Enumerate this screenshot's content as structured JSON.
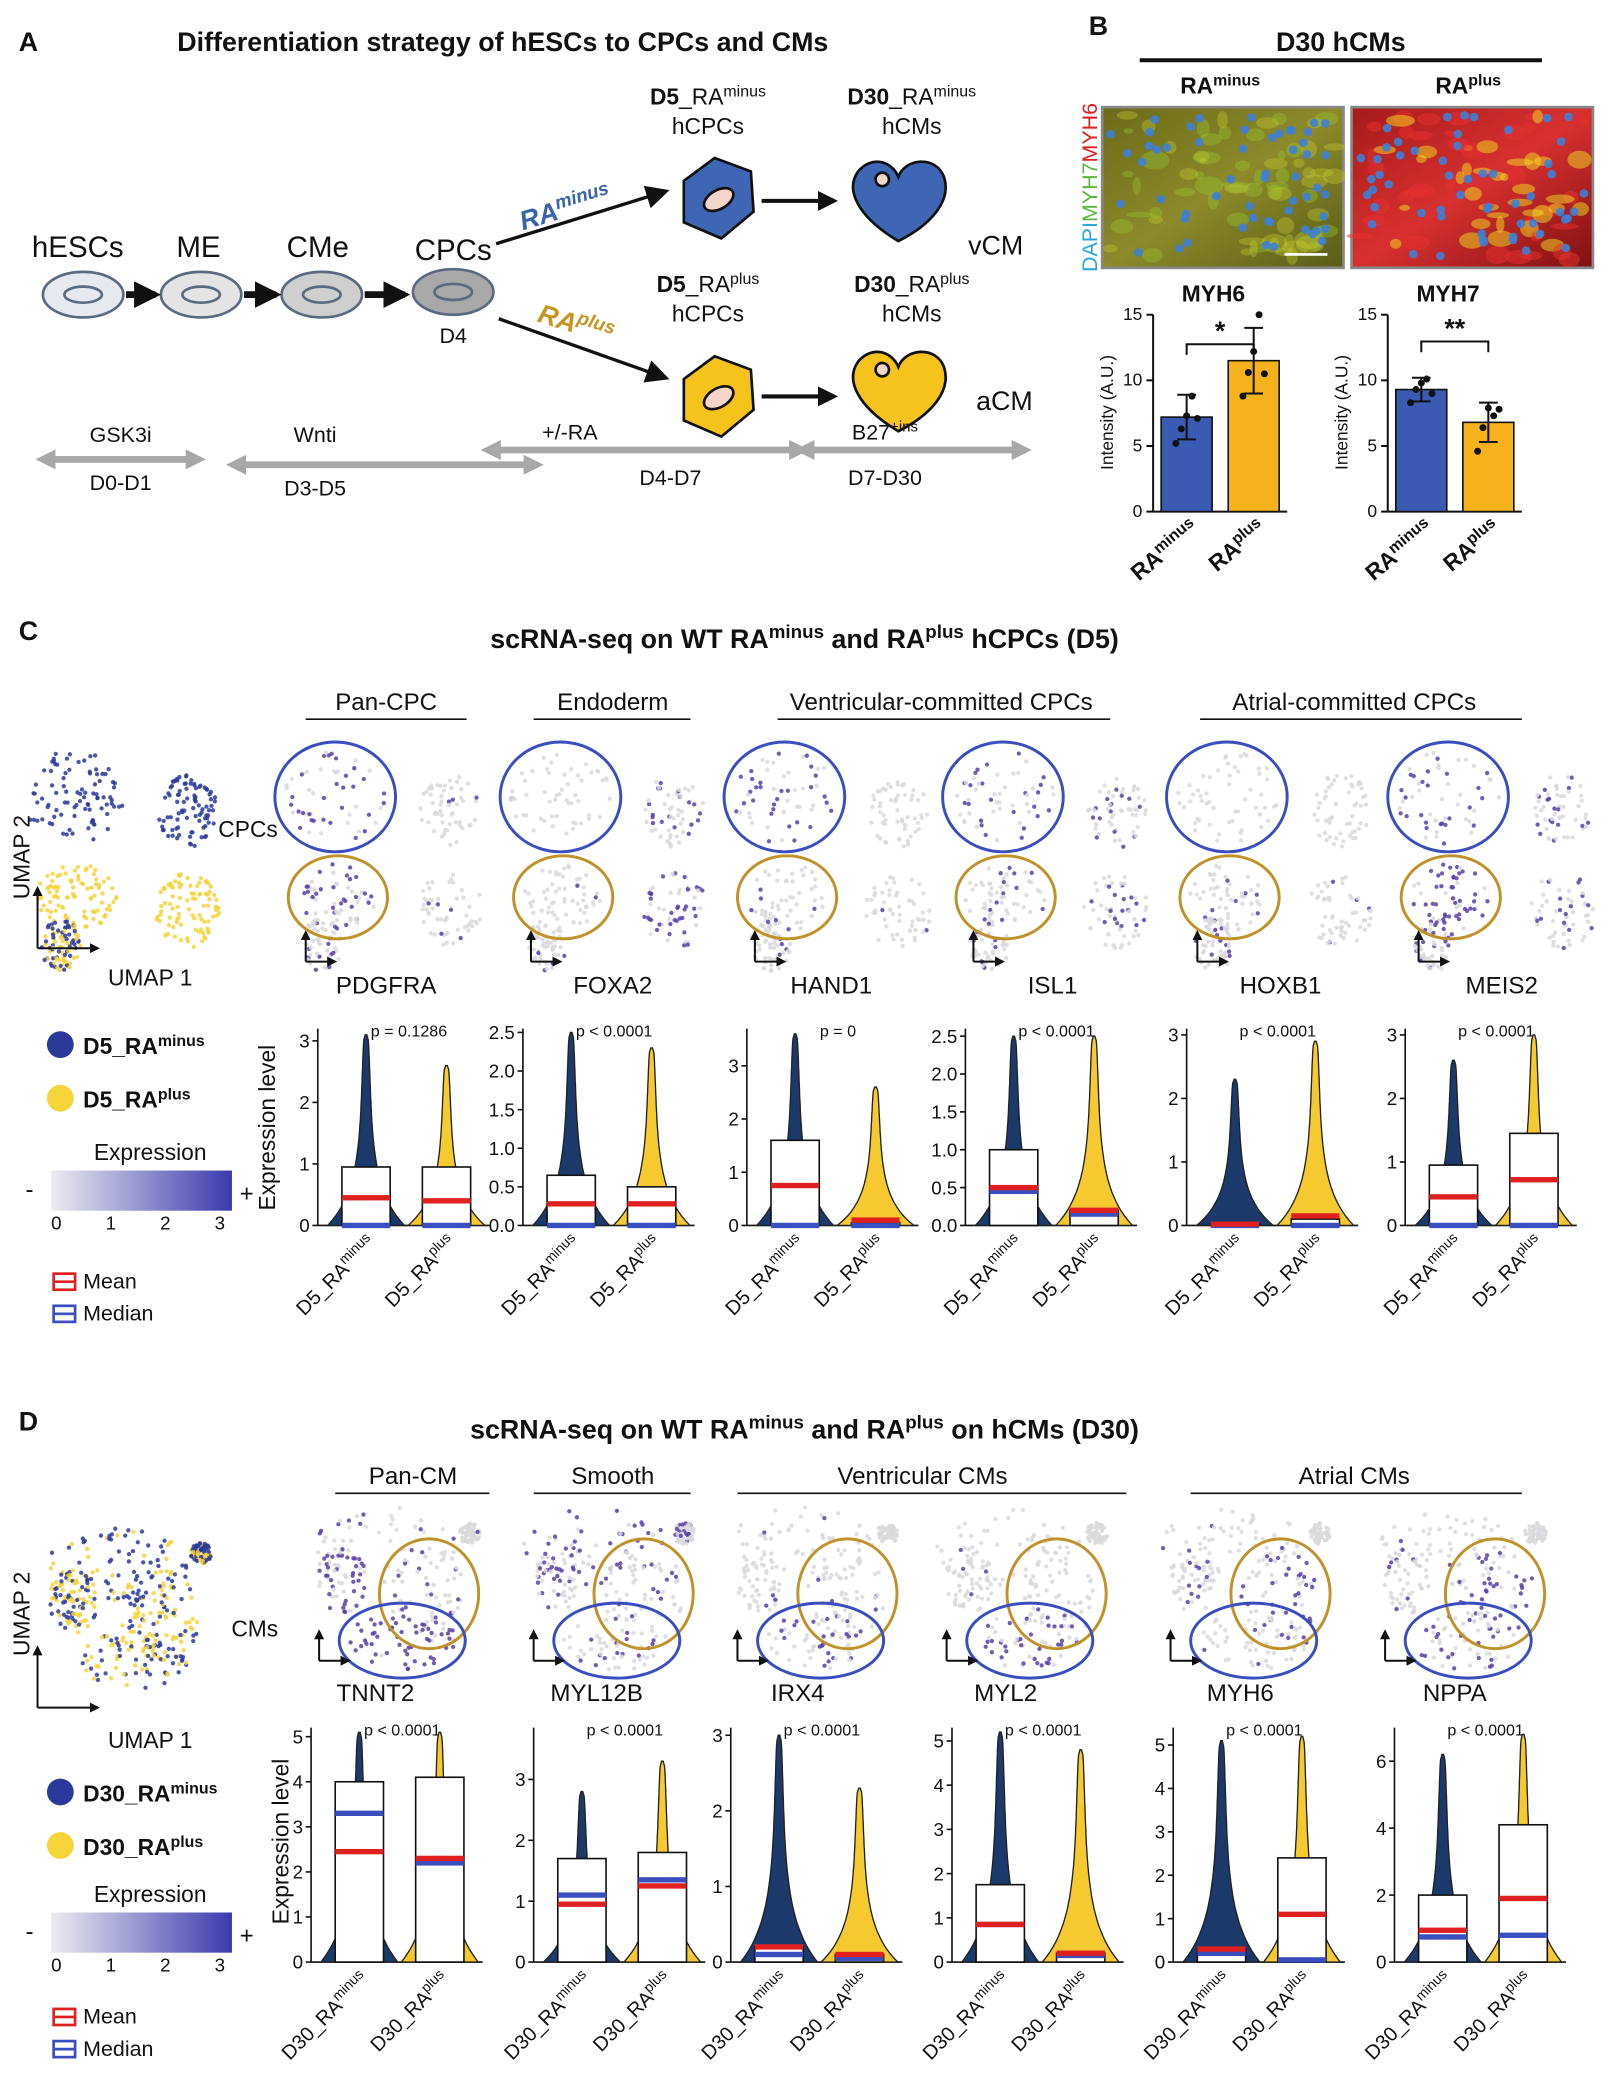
{
  "panel_a": {
    "letter": "A",
    "title": "Differentiation strategy of hESCs to CPCs and CMs",
    "stages": [
      "hESCs",
      "ME",
      "CMe",
      "CPCs"
    ],
    "cpc_day": "D4",
    "branches": [
      {
        "arrow": {
          "text": "RA",
          "sup": "minus"
        },
        "cpc": {
          "bold": "D5",
          "text": "_RA",
          "sup": "minus"
        },
        "cpc_type": "hCPCs",
        "cm": {
          "bold": "D30",
          "text": "_RA",
          "sup": "minus"
        },
        "cm_type": "hCMs",
        "fate": "vCM"
      },
      {
        "arrow": {
          "text": "RA",
          "sup": "plus"
        },
        "cpc": {
          "bold": "D5",
          "text": "_RA",
          "sup": "plus"
        },
        "cpc_type": "hCPCs",
        "cm": {
          "bold": "D30",
          "text": "_RA",
          "sup": "plus"
        },
        "cm_type": "hCMs",
        "fate": "aCM"
      }
    ],
    "timeline": [
      {
        "treatment": {
          "text": "GSK3i"
        },
        "days": "D0-D1"
      },
      {
        "treatment": {
          "text": "Wnti"
        },
        "days": "D3-D5"
      },
      {
        "treatment": {
          "text": "+/-RA"
        },
        "days": "D4-D7"
      },
      {
        "treatment": {
          "text": "B27",
          "sup": "+ins"
        },
        "days": "D7-D30"
      }
    ]
  },
  "panel_b": {
    "letter": "B",
    "title": "D30 hCMs",
    "conditions": [
      {
        "text": "RA",
        "sup": "minus"
      },
      {
        "text": "RA",
        "sup": "plus"
      }
    ],
    "stain": [
      "DAPI",
      "MYH7",
      "MYH6"
    ],
    "charts": [
      {
        "type": "bar",
        "title": "MYH6",
        "y_label": "Intensity (A.U.)",
        "ylim": [
          0,
          15
        ],
        "yticks": [
          0,
          5,
          10,
          15
        ],
        "categories": [
          {
            "text": "RA",
            "sup": "minus"
          },
          {
            "text": "RA",
            "sup": "plus"
          }
        ],
        "values": [
          7.2,
          11.5
        ],
        "errors": [
          1.7,
          2.5
        ],
        "colors": [
          "#3a5ab4",
          "#f5b21c"
        ],
        "points": [
          [
            5.2,
            6.3,
            7.3,
            8.8,
            7.1
          ],
          [
            8.8,
            10.6,
            12.2,
            15,
            10.5
          ]
        ],
        "significance": "*"
      },
      {
        "type": "bar",
        "title": "MYH7",
        "y_label": "Intensity (A.U.)",
        "ylim": [
          0,
          15
        ],
        "yticks": [
          0,
          5,
          10,
          15
        ],
        "categories": [
          {
            "text": "RA",
            "sup": "minus"
          },
          {
            "text": "RA",
            "sup": "plus"
          }
        ],
        "values": [
          9.3,
          6.8
        ],
        "errors": [
          0.9,
          1.5
        ],
        "colors": [
          "#3a5ab4",
          "#f5b21c"
        ],
        "points": [
          [
            8.3,
            9.3,
            9.8,
            10.1,
            9.0
          ],
          [
            4.6,
            6.4,
            7.9,
            7.3,
            7.8
          ]
        ],
        "significance": "**"
      }
    ]
  },
  "panel_c": {
    "letter": "C",
    "title": [
      {
        "text": "scRNA-seq on WT RA",
        "sup": "minus"
      },
      {
        "text": " and RA",
        "sup": "plus"
      },
      {
        "text": " hCPCs (D5)"
      }
    ],
    "groups": [
      "Pan-CPC",
      "Endoderm",
      "Ventricular-committed CPCs",
      "Atrial-committed CPCs"
    ],
    "cluster_label": "CPCs",
    "umap_axes": [
      "UMAP 1",
      "UMAP 2"
    ],
    "legend": [
      {
        "text": "D5_RA",
        "sup": "minus",
        "color": "#2b3a9a"
      },
      {
        "text": "D5_RA",
        "sup": "plus",
        "color": "#f6d43a"
      }
    ],
    "expression": {
      "title": "Expression",
      "low": "-",
      "high": "+",
      "ticks": [
        0,
        1,
        2,
        3
      ]
    },
    "summary_legend": [
      {
        "label": "Mean",
        "color": "#e02020"
      },
      {
        "label": "Median",
        "color": "#3a4ec0"
      }
    ],
    "y_label": "Expression level",
    "categories": [
      {
        "text": "D5_RA",
        "sup": "minus"
      },
      {
        "text": "D5_RA",
        "sup": "plus"
      }
    ],
    "genes": [
      {
        "type": "violin",
        "name": "PDGFRA",
        "p": "p = 0.1286",
        "ylim": [
          0,
          3.2
        ],
        "yticks": [
          0,
          1,
          2,
          3
        ],
        "series": [
          {
            "color": "#1b3a6b",
            "mean": 0.45,
            "median": 0,
            "q3": 0.95,
            "max": 3.1
          },
          {
            "color": "#f5c92f",
            "mean": 0.4,
            "median": 0,
            "q3": 0.95,
            "max": 2.6
          }
        ]
      },
      {
        "type": "violin",
        "name": "FOXA2",
        "p": "p < 0.0001",
        "ylim": [
          0,
          2.55
        ],
        "yticks": [
          {
            "value": 0,
            "label": "0.0"
          },
          {
            "value": 0.5,
            "label": "0.5"
          },
          {
            "value": 1,
            "label": "1.0"
          },
          {
            "value": 1.5,
            "label": "1.5"
          },
          {
            "value": 2,
            "label": "2.0"
          },
          {
            "value": 2.5,
            "label": "2.5"
          }
        ],
        "series": [
          {
            "color": "#1b3a6b",
            "mean": 0.28,
            "median": 0,
            "q3": 0.65,
            "max": 2.5
          },
          {
            "color": "#f5c92f",
            "mean": 0.28,
            "median": 0,
            "q3": 0.5,
            "max": 2.3
          }
        ]
      },
      {
        "type": "violin",
        "name": "HAND1",
        "p": "p = 0",
        "ylim": [
          0,
          3.7
        ],
        "yticks": [
          0,
          1,
          2,
          3
        ],
        "series": [
          {
            "color": "#1b3a6b",
            "mean": 0.75,
            "median": 0,
            "q3": 1.6,
            "max": 3.6
          },
          {
            "color": "#f5c92f",
            "mean": 0.1,
            "median": 0,
            "q3": 0.05,
            "max": 2.6
          }
        ]
      },
      {
        "type": "violin",
        "name": "ISL1",
        "p": "p < 0.0001",
        "ylim": [
          0,
          2.6
        ],
        "yticks": [
          {
            "value": 0,
            "label": "0.0"
          },
          {
            "value": 0.5,
            "label": "0.5"
          },
          {
            "value": 1,
            "label": "1.0"
          },
          {
            "value": 1.5,
            "label": "1.5"
          },
          {
            "value": 2,
            "label": "2.0"
          },
          {
            "value": 2.5,
            "label": "2.5"
          }
        ],
        "series": [
          {
            "color": "#1b3a6b",
            "mean": 0.5,
            "median": 0.45,
            "q3": 1.0,
            "max": 2.5
          },
          {
            "color": "#f5c92f",
            "mean": 0.2,
            "median": 0.15,
            "q3": 0.2,
            "max": 2.5
          }
        ]
      },
      {
        "type": "violin",
        "name": "HOXB1",
        "p": "p < 0.0001",
        "ylim": [
          0,
          3.1
        ],
        "yticks": [
          0,
          1,
          2,
          3
        ],
        "series": [
          {
            "color": "#1b3a6b",
            "mean": 0.02,
            "median": 0,
            "q3": 0.02,
            "max": 2.3
          },
          {
            "color": "#f5c92f",
            "mean": 0.15,
            "median": 0,
            "q3": 0.1,
            "max": 2.9
          }
        ]
      },
      {
        "type": "violin",
        "name": "MEIS2",
        "p": "p < 0.0001",
        "ylim": [
          0,
          3.1
        ],
        "yticks": [
          0,
          1,
          2,
          3
        ],
        "series": [
          {
            "color": "#1b3a6b",
            "mean": 0.45,
            "median": 0,
            "q3": 0.95,
            "max": 2.6
          },
          {
            "color": "#f5c92f",
            "mean": 0.72,
            "median": 0,
            "q3": 1.45,
            "max": 3.0
          }
        ]
      }
    ]
  },
  "panel_d": {
    "letter": "D",
    "title": [
      {
        "text": "scRNA-seq on WT RA",
        "sup": "minus"
      },
      {
        "text": " and RA",
        "sup": "plus"
      },
      {
        "text": " on hCMs (D30)"
      }
    ],
    "groups": [
      "Pan-CM",
      "Smooth",
      "Ventricular CMs",
      "Atrial CMs"
    ],
    "cluster_label": "CMs",
    "umap_axes": [
      "UMAP 1",
      "UMAP 2"
    ],
    "legend": [
      {
        "text": "D30_RA",
        "sup": "minus",
        "color": "#2b3a9a"
      },
      {
        "text": "D30_RA",
        "sup": "plus",
        "color": "#f6d43a"
      }
    ],
    "expression": {
      "title": "Expression",
      "low": "-",
      "high": "+",
      "ticks": [
        0,
        1,
        2,
        3
      ]
    },
    "summary_legend": [
      {
        "label": "Mean",
        "color": "#e02020"
      },
      {
        "label": "Median",
        "color": "#3a4ec0"
      }
    ],
    "y_label": "Expression level",
    "categories": [
      {
        "text": "D30_RA",
        "sup": "minus"
      },
      {
        "text": "D30_RA",
        "sup": "plus"
      }
    ],
    "genes": [
      {
        "type": "violin",
        "name": "TNNT2",
        "p": "p < 0.0001",
        "ylim": [
          0,
          5.2
        ],
        "yticks": [
          0,
          1,
          2,
          3,
          4,
          5
        ],
        "series": [
          {
            "color": "#1b3a6b",
            "mean": 2.45,
            "median": 3.3,
            "q3": 4.0,
            "max": 5.1
          },
          {
            "color": "#f5c92f",
            "mean": 2.3,
            "median": 2.2,
            "q3": 4.1,
            "max": 5.1
          }
        ]
      },
      {
        "type": "violin",
        "name": "MYL12B",
        "p": "p < 0.0001",
        "ylim": [
          0,
          3.85
        ],
        "yticks": [
          0,
          1,
          2,
          3
        ],
        "series": [
          {
            "color": "#1b3a6b",
            "mean": 0.95,
            "median": 1.1,
            "q3": 1.7,
            "max": 2.8
          },
          {
            "color": "#f5c92f",
            "mean": 1.25,
            "median": 1.35,
            "q3": 1.8,
            "max": 3.3
          }
        ]
      },
      {
        "type": "violin",
        "name": "IRX4",
        "p": "p < 0.0001",
        "ylim": [
          0,
          3.1
        ],
        "yticks": [
          0,
          1,
          2,
          3
        ],
        "series": [
          {
            "color": "#1b3a6b",
            "mean": 0.2,
            "median": 0.1,
            "q3": 0.2,
            "max": 3.0
          },
          {
            "color": "#f5c92f",
            "mean": 0.1,
            "median": 0.05,
            "q3": 0.1,
            "max": 2.3
          }
        ]
      },
      {
        "type": "violin",
        "name": "MYL2",
        "p": "p < 0.0001",
        "ylim": [
          0,
          5.3
        ],
        "yticks": [
          0,
          1,
          2,
          3,
          4,
          5
        ],
        "series": [
          {
            "color": "#1b3a6b",
            "mean": 0.85,
            "median": 0.85,
            "q3": 1.75,
            "max": 5.2
          },
          {
            "color": "#f5c92f",
            "mean": 0.2,
            "median": 0.15,
            "q3": 0.2,
            "max": 4.8
          }
        ]
      },
      {
        "type": "violin",
        "name": "MYH6",
        "p": "p < 0.0001",
        "ylim": [
          0,
          5.4
        ],
        "yticks": [
          0,
          1,
          2,
          3,
          4,
          5
        ],
        "series": [
          {
            "color": "#1b3a6b",
            "mean": 0.3,
            "median": 0.2,
            "q3": 0.3,
            "max": 5.1
          },
          {
            "color": "#f5c92f",
            "mean": 1.1,
            "median": 0.05,
            "q3": 2.4,
            "max": 5.2
          }
        ]
      },
      {
        "type": "violin",
        "name": "NPPA",
        "p": "p < 0.0001",
        "ylim": [
          0,
          7
        ],
        "yticks": [
          0,
          2,
          4,
          6
        ],
        "series": [
          {
            "color": "#1b3a6b",
            "mean": 0.95,
            "median": 0.75,
            "q3": 2.0,
            "max": 6.2
          },
          {
            "color": "#f5c92f",
            "mean": 1.9,
            "median": 0.8,
            "q3": 4.1,
            "max": 6.8
          }
        ]
      }
    ]
  }
}
